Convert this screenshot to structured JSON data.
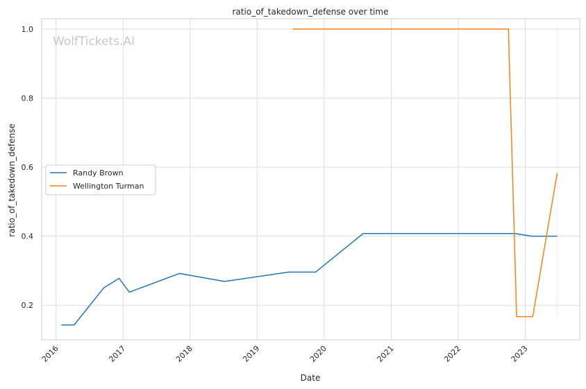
{
  "chart_data": {
    "type": "line",
    "title": "ratio_of_takedown_defense over time",
    "xlabel": "Date",
    "ylabel": "ratio_of_takedown_defense",
    "watermark": "WolfTickets.AI",
    "xlim": [
      "2015-10-15",
      "2023-10-25"
    ],
    "ylim": [
      0.1,
      1.03
    ],
    "x_ticks": [
      "2016",
      "2017",
      "2018",
      "2019",
      "2020",
      "2021",
      "2022",
      "2023"
    ],
    "y_ticks": [
      "0.2",
      "0.4",
      "0.6",
      "0.8",
      "1.0"
    ],
    "grid": true,
    "legend_position": "center-left",
    "series": [
      {
        "name": "Randy Brown",
        "color": "#1f77b4",
        "x": [
          "2016-01-30",
          "2016-04-09",
          "2016-09-17",
          "2016-12-10",
          "2017-02-04",
          "2017-11-04",
          "2018-07-07",
          "2019-06-22",
          "2019-11-16",
          "2020-08-01",
          "2022-11-05",
          "2023-02-04",
          "2023-06-24"
        ],
        "y": [
          0.143,
          0.143,
          0.25,
          0.278,
          0.238,
          0.292,
          0.269,
          0.296,
          0.296,
          0.408,
          0.408,
          0.4,
          0.4
        ]
      },
      {
        "name": "Wellington Turman",
        "color": "#ff7f0e",
        "x": [
          "2019-07-13",
          "2022-10-01",
          "2022-11-15",
          "2023-02-11",
          "2023-06-24"
        ],
        "y": [
          1.0,
          1.0,
          0.167,
          0.167,
          0.583
        ]
      }
    ]
  }
}
